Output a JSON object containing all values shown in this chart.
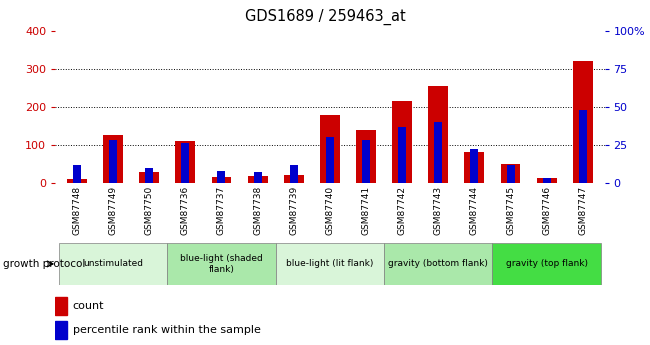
{
  "title": "GDS1689 / 259463_at",
  "samples": [
    "GSM87748",
    "GSM87749",
    "GSM87750",
    "GSM87736",
    "GSM87737",
    "GSM87738",
    "GSM87739",
    "GSM87740",
    "GSM87741",
    "GSM87742",
    "GSM87743",
    "GSM87744",
    "GSM87745",
    "GSM87746",
    "GSM87747"
  ],
  "count_values": [
    10,
    125,
    28,
    110,
    15,
    18,
    20,
    178,
    140,
    215,
    255,
    80,
    50,
    12,
    320
  ],
  "percentile_values": [
    12,
    28,
    10,
    26,
    8,
    7,
    12,
    30,
    28,
    37,
    40,
    22,
    12,
    3,
    48
  ],
  "groups": [
    {
      "label": "unstimulated",
      "start": 0,
      "end": 3,
      "color": "#d9f5d9"
    },
    {
      "label": "blue-light (shaded\nflank)",
      "start": 3,
      "end": 6,
      "color": "#aae8aa"
    },
    {
      "label": "blue-light (lit flank)",
      "start": 6,
      "end": 9,
      "color": "#d9f5d9"
    },
    {
      "label": "gravity (bottom flank)",
      "start": 9,
      "end": 12,
      "color": "#aae8aa"
    },
    {
      "label": "gravity (top flank)",
      "start": 12,
      "end": 15,
      "color": "#44dd44"
    }
  ],
  "ylim_left": [
    0,
    400
  ],
  "ylim_right": [
    0,
    100
  ],
  "yticks_left": [
    0,
    100,
    200,
    300,
    400
  ],
  "yticks_right": [
    0,
    25,
    50,
    75,
    100
  ],
  "yticklabels_right": [
    "0",
    "25",
    "50",
    "75",
    "100%"
  ],
  "bar_color_count": "#cc0000",
  "bar_color_pct": "#0000cc",
  "bg_plot": "#ffffff",
  "bg_fig": "#ffffff",
  "tick_color_left": "#cc0000",
  "tick_color_right": "#0000cc",
  "growth_protocol_label": "growth protocol",
  "legend_count_label": "count",
  "legend_pct_label": "percentile rank within the sample"
}
